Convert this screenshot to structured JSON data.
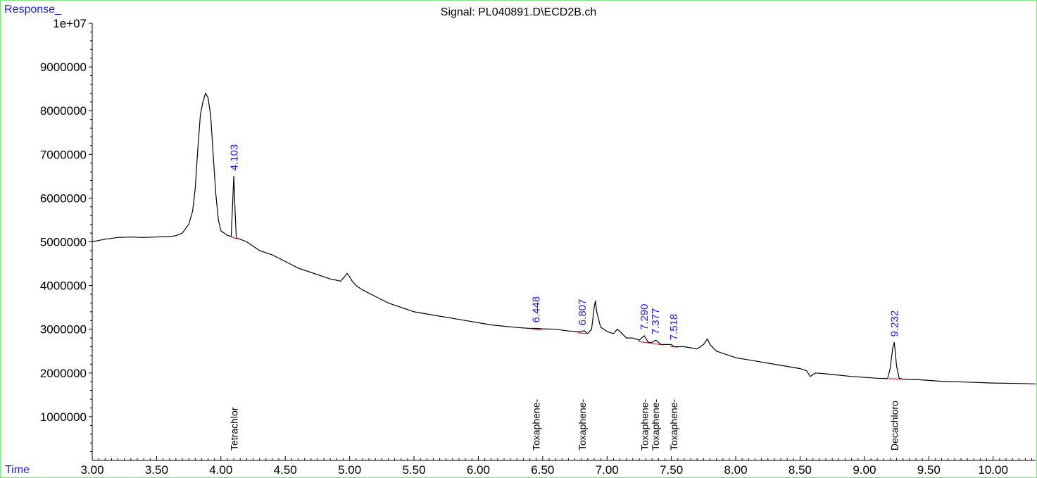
{
  "chart_data": {
    "type": "line",
    "title": "Signal: PL040891.D\\ECD2B.ch",
    "ylabel": "Response_",
    "xlabel": "Time",
    "xlim": [
      3.0,
      10.33
    ],
    "ylim": [
      0,
      10000000
    ],
    "x_ticks": [
      "3.00",
      "3.50",
      "4.00",
      "4.50",
      "5.00",
      "5.50",
      "6.00",
      "6.50",
      "7.00",
      "7.50",
      "8.00",
      "8.50",
      "9.00",
      "9.50",
      "10.00"
    ],
    "x_tick_values": [
      3.0,
      3.5,
      4.0,
      4.5,
      5.0,
      5.5,
      6.0,
      6.5,
      7.0,
      7.5,
      8.0,
      8.5,
      9.0,
      9.5,
      10.0
    ],
    "y_ticks": [
      "1000000",
      "2000000",
      "3000000",
      "4000000",
      "5000000",
      "6000000",
      "7000000",
      "8000000",
      "9000000",
      "1e+07"
    ],
    "y_tick_values": [
      1000000,
      2000000,
      3000000,
      4000000,
      5000000,
      6000000,
      7000000,
      8000000,
      9000000,
      10000000
    ],
    "series": [
      {
        "color": "#000000",
        "x": [
          3.0,
          3.05,
          3.1,
          3.2,
          3.3,
          3.4,
          3.5,
          3.6,
          3.65,
          3.7,
          3.75,
          3.78,
          3.8,
          3.82,
          3.84,
          3.86,
          3.88,
          3.9,
          3.92,
          3.94,
          3.96,
          3.98,
          4.0,
          4.05,
          4.08,
          4.1,
          4.11,
          4.12,
          4.14,
          4.2,
          4.3,
          4.4,
          4.5,
          4.6,
          4.7,
          4.8,
          4.85,
          4.9,
          4.93,
          4.96,
          4.98,
          5.0,
          5.02,
          5.05,
          5.1,
          5.2,
          5.3,
          5.4,
          5.5,
          5.6,
          5.7,
          5.8,
          5.9,
          6.0,
          6.1,
          6.2,
          6.3,
          6.4,
          6.45,
          6.5,
          6.6,
          6.7,
          6.75,
          6.8,
          6.82,
          6.85,
          6.88,
          6.9,
          6.91,
          6.92,
          6.95,
          7.0,
          7.05,
          7.08,
          7.1,
          7.15,
          7.2,
          7.25,
          7.29,
          7.32,
          7.35,
          7.38,
          7.42,
          7.45,
          7.5,
          7.52,
          7.55,
          7.6,
          7.7,
          7.75,
          7.78,
          7.8,
          7.85,
          7.9,
          8.0,
          8.1,
          8.2,
          8.3,
          8.4,
          8.5,
          8.55,
          8.58,
          8.62,
          8.7,
          8.8,
          8.9,
          9.0,
          9.1,
          9.18,
          9.2,
          9.22,
          9.232,
          9.25,
          9.27,
          9.3,
          9.4,
          9.5,
          9.6,
          9.8,
          10.0,
          10.2,
          10.33
        ],
        "values": [
          5000000,
          5030000,
          5060000,
          5100000,
          5110000,
          5100000,
          5110000,
          5120000,
          5140000,
          5200000,
          5400000,
          5700000,
          6200000,
          7100000,
          7900000,
          8200000,
          8400000,
          8300000,
          7900000,
          7000000,
          6100000,
          5500000,
          5250000,
          5150000,
          5120000,
          6500000,
          5700000,
          5080000,
          5070000,
          5000000,
          4800000,
          4700000,
          4550000,
          4400000,
          4300000,
          4200000,
          4150000,
          4120000,
          4100000,
          4200000,
          4280000,
          4200000,
          4100000,
          4000000,
          3900000,
          3750000,
          3600000,
          3500000,
          3400000,
          3350000,
          3300000,
          3250000,
          3200000,
          3150000,
          3100000,
          3070000,
          3040000,
          3020000,
          3020000,
          3010000,
          3000000,
          2960000,
          2950000,
          2940000,
          2970000,
          2900000,
          3000000,
          3500000,
          3650000,
          3400000,
          3050000,
          2950000,
          2900000,
          3000000,
          2950000,
          2800000,
          2800000,
          2750000,
          2850000,
          2700000,
          2700000,
          2750000,
          2650000,
          2650000,
          2650000,
          2600000,
          2600000,
          2600000,
          2550000,
          2650000,
          2780000,
          2650000,
          2500000,
          2450000,
          2350000,
          2300000,
          2250000,
          2200000,
          2150000,
          2100000,
          2050000,
          1920000,
          2000000,
          1980000,
          1950000,
          1920000,
          1900000,
          1880000,
          1870000,
          2100000,
          2580000,
          2700000,
          2150000,
          1880000,
          1860000,
          1850000,
          1830000,
          1810000,
          1790000,
          1770000,
          1760000,
          1750000
        ]
      }
    ],
    "baselines": [
      {
        "x": [
          4.08,
          4.12
        ],
        "values": [
          5120000,
          5070000
        ]
      },
      {
        "x": [
          6.42,
          6.49
        ],
        "values": [
          3000000,
          2990000
        ]
      },
      {
        "x": [
          6.77,
          6.84
        ],
        "values": [
          2920000,
          2900000
        ]
      },
      {
        "x": [
          7.24,
          7.44
        ],
        "values": [
          2720000,
          2640000
        ]
      },
      {
        "x": [
          7.49,
          7.55
        ],
        "values": [
          2610000,
          2590000
        ]
      },
      {
        "x": [
          9.19,
          9.28
        ],
        "values": [
          1870000,
          1860000
        ]
      }
    ],
    "peak_labels": [
      {
        "rt": "4.103",
        "x": 4.103,
        "y": 6500000
      },
      {
        "rt": "6.448",
        "x": 6.448,
        "y": 3020000
      },
      {
        "rt": "6.807",
        "x": 6.807,
        "y": 2960000
      },
      {
        "rt": "7.290",
        "x": 7.29,
        "y": 2850000
      },
      {
        "rt": "7.377",
        "x": 7.377,
        "y": 2750000
      },
      {
        "rt": "7.518",
        "x": 7.518,
        "y": 2620000
      },
      {
        "rt": "9.232",
        "x": 9.232,
        "y": 2700000
      }
    ],
    "compound_labels": [
      {
        "text": "Tetrachlor",
        "x": 4.103
      },
      {
        "text": "Toxaphene-",
        "x": 6.448
      },
      {
        "text": "Toxaphene-",
        "x": 6.807
      },
      {
        "text": "Toxaphene-",
        "x": 7.29
      },
      {
        "text": "Toxaphene-",
        "x": 7.377
      },
      {
        "text": "Toxaphene-",
        "x": 7.518
      },
      {
        "text": "Decachloro",
        "x": 9.232
      }
    ],
    "colors": {
      "trace": "#000000",
      "baseline": "#e02020",
      "peak_label": "#1a1aff",
      "corner_label": "#1a1aff",
      "frame": "#7fe07f"
    },
    "grid": false
  }
}
